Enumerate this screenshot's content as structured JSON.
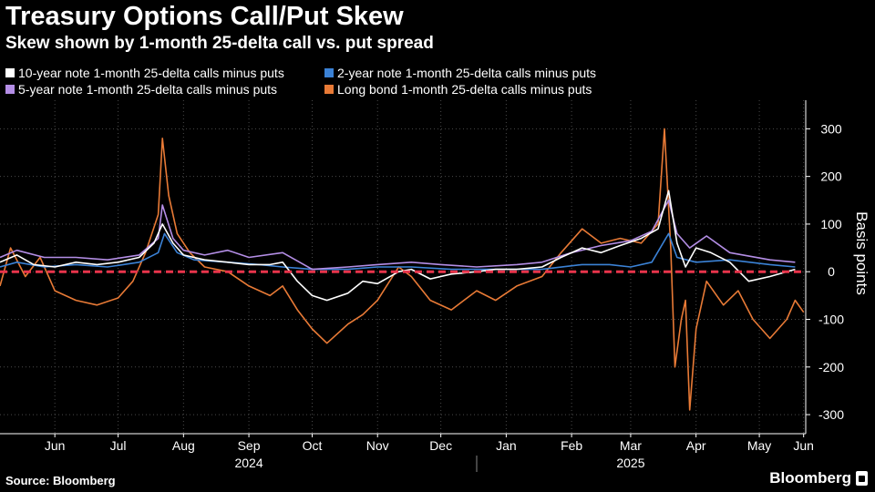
{
  "header": {
    "title": "Treasury Options Call/Put Skew",
    "subtitle": "Skew shown by 1-month 25-delta call vs. put spread"
  },
  "footer": {
    "source": "Source: Bloomberg",
    "brand": "Bloomberg"
  },
  "colors": {
    "background": "#000000",
    "zero_line": "#e8344b",
    "grid": "#555555"
  },
  "chart_data": {
    "type": "line",
    "title": "Treasury Options Call/Put Skew",
    "subtitle": "Skew shown by 1-month 25-delta call vs. put spread",
    "ylabel": "Basis points",
    "ylim": [
      -340,
      360
    ],
    "yticks": [
      300,
      200,
      100,
      0,
      -100,
      -200,
      -300
    ],
    "x_start": "2024-05-20",
    "x_end": "2025-06-06",
    "x_ticks": [
      {
        "label": "Jun",
        "date": "2024-06-15"
      },
      {
        "label": "Jul",
        "date": "2024-07-15"
      },
      {
        "label": "Aug",
        "date": "2024-08-15"
      },
      {
        "label": "Sep",
        "date": "2024-09-15"
      },
      {
        "label": "Oct",
        "date": "2024-10-15"
      },
      {
        "label": "Nov",
        "date": "2024-11-15"
      },
      {
        "label": "Dec",
        "date": "2024-12-15"
      },
      {
        "label": "Jan",
        "date": "2025-01-15"
      },
      {
        "label": "Feb",
        "date": "2025-02-15"
      },
      {
        "label": "Mar",
        "date": "2025-03-15"
      },
      {
        "label": "Apr",
        "date": "2025-04-15"
      },
      {
        "label": "May",
        "date": "2025-05-15"
      },
      {
        "label": "Jun",
        "date": "2025-06-05"
      }
    ],
    "year_labels": [
      {
        "label": "2024",
        "date": "2024-09-15"
      },
      {
        "label": "2025",
        "date": "2025-03-15"
      }
    ],
    "year_divider": "2025-01-01",
    "zero_line": 0,
    "legend_position": "top",
    "series": [
      {
        "name": "10-year note 1-month 25-delta calls minus puts",
        "color": "#ffffff",
        "points": [
          [
            "2024-05-20",
            20
          ],
          [
            "2024-05-28",
            35
          ],
          [
            "2024-06-05",
            15
          ],
          [
            "2024-06-15",
            10
          ],
          [
            "2024-06-25",
            20
          ],
          [
            "2024-07-05",
            15
          ],
          [
            "2024-07-15",
            20
          ],
          [
            "2024-07-25",
            30
          ],
          [
            "2024-08-01",
            60
          ],
          [
            "2024-08-05",
            100
          ],
          [
            "2024-08-10",
            60
          ],
          [
            "2024-08-15",
            35
          ],
          [
            "2024-08-25",
            25
          ],
          [
            "2024-09-05",
            20
          ],
          [
            "2024-09-15",
            15
          ],
          [
            "2024-09-25",
            15
          ],
          [
            "2024-10-01",
            20
          ],
          [
            "2024-10-08",
            -20
          ],
          [
            "2024-10-15",
            -50
          ],
          [
            "2024-10-22",
            -60
          ],
          [
            "2024-11-01",
            -45
          ],
          [
            "2024-11-08",
            -20
          ],
          [
            "2024-11-15",
            -25
          ],
          [
            "2024-11-25",
            0
          ],
          [
            "2024-12-01",
            5
          ],
          [
            "2024-12-10",
            -15
          ],
          [
            "2024-12-20",
            -5
          ],
          [
            "2025-01-01",
            0
          ],
          [
            "2025-01-10",
            5
          ],
          [
            "2025-01-20",
            5
          ],
          [
            "2025-02-01",
            10
          ],
          [
            "2025-02-10",
            30
          ],
          [
            "2025-02-20",
            50
          ],
          [
            "2025-03-01",
            40
          ],
          [
            "2025-03-10",
            55
          ],
          [
            "2025-03-20",
            70
          ],
          [
            "2025-03-28",
            90
          ],
          [
            "2025-04-02",
            170
          ],
          [
            "2025-04-06",
            60
          ],
          [
            "2025-04-10",
            10
          ],
          [
            "2025-04-15",
            50
          ],
          [
            "2025-04-22",
            40
          ],
          [
            "2025-05-01",
            20
          ],
          [
            "2025-05-10",
            -20
          ],
          [
            "2025-05-20",
            -10
          ],
          [
            "2025-06-01",
            5
          ]
        ]
      },
      {
        "name": "2-year note 1-month 25-delta calls minus puts",
        "color": "#3b82d6",
        "points": [
          [
            "2024-05-20",
            10
          ],
          [
            "2024-05-28",
            20
          ],
          [
            "2024-06-10",
            10
          ],
          [
            "2024-06-25",
            15
          ],
          [
            "2024-07-10",
            10
          ],
          [
            "2024-07-25",
            20
          ],
          [
            "2024-08-03",
            40
          ],
          [
            "2024-08-06",
            80
          ],
          [
            "2024-08-12",
            40
          ],
          [
            "2024-08-20",
            25
          ],
          [
            "2024-09-05",
            20
          ],
          [
            "2024-09-20",
            15
          ],
          [
            "2024-10-01",
            10
          ],
          [
            "2024-10-15",
            5
          ],
          [
            "2024-11-01",
            5
          ],
          [
            "2024-11-15",
            10
          ],
          [
            "2024-12-01",
            10
          ],
          [
            "2024-12-20",
            5
          ],
          [
            "2025-01-10",
            5
          ],
          [
            "2025-02-01",
            5
          ],
          [
            "2025-02-20",
            15
          ],
          [
            "2025-03-05",
            15
          ],
          [
            "2025-03-15",
            10
          ],
          [
            "2025-03-25",
            20
          ],
          [
            "2025-04-02",
            80
          ],
          [
            "2025-04-06",
            30
          ],
          [
            "2025-04-15",
            20
          ],
          [
            "2025-05-01",
            25
          ],
          [
            "2025-05-20",
            15
          ],
          [
            "2025-06-01",
            10
          ]
        ]
      },
      {
        "name": "5-year note 1-month 25-delta calls minus puts",
        "color": "#b48ee6",
        "points": [
          [
            "2024-05-20",
            30
          ],
          [
            "2024-05-28",
            45
          ],
          [
            "2024-06-10",
            30
          ],
          [
            "2024-06-25",
            30
          ],
          [
            "2024-07-10",
            25
          ],
          [
            "2024-07-25",
            35
          ],
          [
            "2024-08-03",
            70
          ],
          [
            "2024-08-05",
            140
          ],
          [
            "2024-08-10",
            70
          ],
          [
            "2024-08-15",
            45
          ],
          [
            "2024-08-25",
            35
          ],
          [
            "2024-09-05",
            45
          ],
          [
            "2024-09-15",
            30
          ],
          [
            "2024-10-01",
            40
          ],
          [
            "2024-10-15",
            5
          ],
          [
            "2024-11-01",
            10
          ],
          [
            "2024-11-15",
            15
          ],
          [
            "2024-12-01",
            20
          ],
          [
            "2024-12-15",
            15
          ],
          [
            "2025-01-01",
            10
          ],
          [
            "2025-01-20",
            15
          ],
          [
            "2025-02-01",
            20
          ],
          [
            "2025-02-15",
            40
          ],
          [
            "2025-03-01",
            55
          ],
          [
            "2025-03-15",
            65
          ],
          [
            "2025-03-25",
            85
          ],
          [
            "2025-04-02",
            150
          ],
          [
            "2025-04-06",
            80
          ],
          [
            "2025-04-12",
            50
          ],
          [
            "2025-04-20",
            75
          ],
          [
            "2025-05-01",
            40
          ],
          [
            "2025-05-20",
            25
          ],
          [
            "2025-06-01",
            20
          ]
        ]
      },
      {
        "name": "Long bond 1-month 25-delta calls minus puts",
        "color": "#e87a36",
        "points": [
          [
            "2024-05-20",
            -30
          ],
          [
            "2024-05-25",
            50
          ],
          [
            "2024-06-01",
            -10
          ],
          [
            "2024-06-08",
            30
          ],
          [
            "2024-06-15",
            -40
          ],
          [
            "2024-06-25",
            -60
          ],
          [
            "2024-07-05",
            -70
          ],
          [
            "2024-07-15",
            -55
          ],
          [
            "2024-07-22",
            -20
          ],
          [
            "2024-07-28",
            40
          ],
          [
            "2024-08-03",
            120
          ],
          [
            "2024-08-05",
            280
          ],
          [
            "2024-08-08",
            160
          ],
          [
            "2024-08-12",
            80
          ],
          [
            "2024-08-18",
            40
          ],
          [
            "2024-08-25",
            10
          ],
          [
            "2024-09-05",
            0
          ],
          [
            "2024-09-15",
            -30
          ],
          [
            "2024-09-25",
            -50
          ],
          [
            "2024-10-01",
            -30
          ],
          [
            "2024-10-08",
            -80
          ],
          [
            "2024-10-15",
            -120
          ],
          [
            "2024-10-22",
            -150
          ],
          [
            "2024-11-01",
            -110
          ],
          [
            "2024-11-08",
            -90
          ],
          [
            "2024-11-15",
            -60
          ],
          [
            "2024-11-25",
            10
          ],
          [
            "2024-12-01",
            -10
          ],
          [
            "2024-12-10",
            -60
          ],
          [
            "2024-12-20",
            -80
          ],
          [
            "2025-01-01",
            -40
          ],
          [
            "2025-01-10",
            -60
          ],
          [
            "2025-01-20",
            -30
          ],
          [
            "2025-02-01",
            -10
          ],
          [
            "2025-02-10",
            40
          ],
          [
            "2025-02-20",
            90
          ],
          [
            "2025-03-01",
            60
          ],
          [
            "2025-03-10",
            70
          ],
          [
            "2025-03-20",
            60
          ],
          [
            "2025-03-28",
            100
          ],
          [
            "2025-03-31",
            300
          ],
          [
            "2025-04-03",
            50
          ],
          [
            "2025-04-05",
            -200
          ],
          [
            "2025-04-08",
            -100
          ],
          [
            "2025-04-10",
            -60
          ],
          [
            "2025-04-12",
            -290
          ],
          [
            "2025-04-15",
            -120
          ],
          [
            "2025-04-20",
            -20
          ],
          [
            "2025-04-28",
            -70
          ],
          [
            "2025-05-05",
            -40
          ],
          [
            "2025-05-12",
            -100
          ],
          [
            "2025-05-20",
            -140
          ],
          [
            "2025-05-28",
            -100
          ],
          [
            "2025-06-01",
            -60
          ],
          [
            "2025-06-05",
            -85
          ]
        ]
      }
    ]
  }
}
